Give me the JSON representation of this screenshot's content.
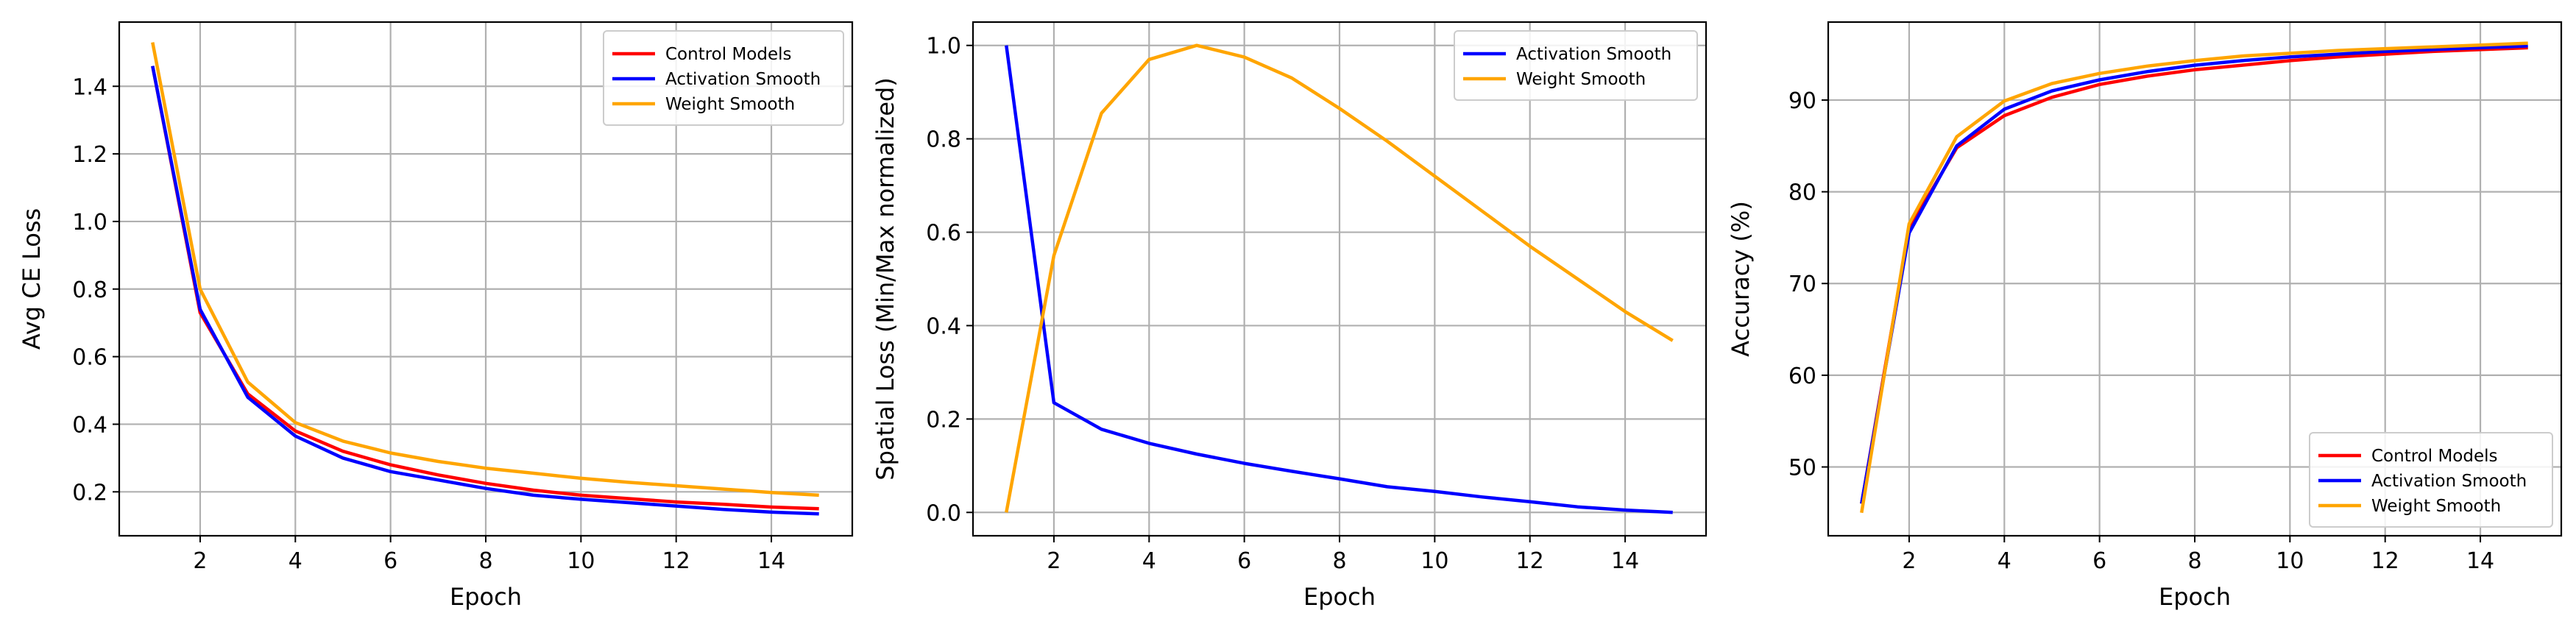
{
  "chart_data": [
    {
      "type": "line",
      "xlabel": "Epoch",
      "ylabel": "Avg CE Loss",
      "xlim": [
        0.3,
        15.7
      ],
      "ylim": [
        0.07,
        1.59
      ],
      "xticks": [
        2,
        4,
        6,
        8,
        10,
        12,
        14
      ],
      "yticks": [
        0.2,
        0.4,
        0.6,
        0.8,
        1.0,
        1.2,
        1.4
      ],
      "ytick_labels": [
        "0.2",
        "0.4",
        "0.6",
        "0.8",
        "1.0",
        "1.2",
        "1.4"
      ],
      "grid": true,
      "legend_position": "top-right",
      "x": [
        1,
        2,
        3,
        4,
        5,
        6,
        7,
        8,
        9,
        10,
        11,
        12,
        13,
        14,
        15
      ],
      "series": [
        {
          "name": "Control Models",
          "color": "#ff0000",
          "values": [
            1.46,
            0.73,
            0.49,
            0.38,
            0.32,
            0.28,
            0.25,
            0.225,
            0.205,
            0.19,
            0.18,
            0.17,
            0.163,
            0.155,
            0.15
          ]
        },
        {
          "name": "Activation Smooth",
          "color": "#0000ff",
          "values": [
            1.46,
            0.74,
            0.48,
            0.365,
            0.3,
            0.26,
            0.235,
            0.21,
            0.19,
            0.178,
            0.168,
            0.158,
            0.148,
            0.14,
            0.135
          ]
        },
        {
          "name": "Weight Smooth",
          "color": "#ffa500",
          "values": [
            1.53,
            0.8,
            0.525,
            0.405,
            0.35,
            0.315,
            0.29,
            0.27,
            0.255,
            0.24,
            0.228,
            0.218,
            0.208,
            0.198,
            0.19
          ]
        }
      ]
    },
    {
      "type": "line",
      "xlabel": "Epoch",
      "ylabel": "Spatial Loss (Min/Max normalized)",
      "xlim": [
        0.3,
        15.7
      ],
      "ylim": [
        -0.05,
        1.05
      ],
      "xticks": [
        2,
        4,
        6,
        8,
        10,
        12,
        14
      ],
      "yticks": [
        0.0,
        0.2,
        0.4,
        0.6,
        0.8,
        1.0
      ],
      "ytick_labels": [
        "0.0",
        "0.2",
        "0.4",
        "0.6",
        "0.8",
        "1.0"
      ],
      "grid": true,
      "legend_position": "top-right",
      "x": [
        1,
        2,
        3,
        4,
        5,
        6,
        7,
        8,
        9,
        10,
        11,
        12,
        13,
        14,
        15
      ],
      "series": [
        {
          "name": "Activation Smooth",
          "color": "#0000ff",
          "values": [
            1.0,
            0.235,
            0.178,
            0.148,
            0.125,
            0.105,
            0.088,
            0.072,
            0.055,
            0.045,
            0.033,
            0.023,
            0.012,
            0.005,
            0.0
          ]
        },
        {
          "name": "Weight Smooth",
          "color": "#ffa500",
          "values": [
            0.0,
            0.55,
            0.855,
            0.97,
            1.0,
            0.975,
            0.93,
            0.865,
            0.795,
            0.72,
            0.645,
            0.57,
            0.5,
            0.43,
            0.368
          ]
        }
      ]
    },
    {
      "type": "line",
      "xlabel": "Epoch",
      "ylabel": "Accuracy (%)",
      "xlim": [
        0.3,
        15.7
      ],
      "ylim": [
        42.5,
        98.5
      ],
      "xticks": [
        2,
        4,
        6,
        8,
        10,
        12,
        14
      ],
      "yticks": [
        50,
        60,
        70,
        80,
        90
      ],
      "ytick_labels": [
        "50",
        "60",
        "70",
        "80",
        "90"
      ],
      "grid": true,
      "legend_position": "bottom-right",
      "x": [
        1,
        2,
        3,
        4,
        5,
        6,
        7,
        8,
        9,
        10,
        11,
        12,
        13,
        14,
        15
      ],
      "series": [
        {
          "name": "Control Models",
          "color": "#ff0000",
          "values": [
            46.0,
            76.0,
            84.8,
            88.3,
            90.3,
            91.7,
            92.6,
            93.3,
            93.8,
            94.3,
            94.7,
            95.0,
            95.3,
            95.5,
            95.7
          ]
        },
        {
          "name": "Activation Smooth",
          "color": "#0000ff",
          "values": [
            46.0,
            75.5,
            85.0,
            89.0,
            91.0,
            92.2,
            93.1,
            93.8,
            94.3,
            94.7,
            95.0,
            95.3,
            95.5,
            95.7,
            95.9
          ]
        },
        {
          "name": "Weight Smooth",
          "color": "#ffa500",
          "values": [
            45.0,
            76.5,
            86.0,
            89.9,
            91.8,
            92.9,
            93.7,
            94.3,
            94.8,
            95.1,
            95.4,
            95.6,
            95.8,
            96.0,
            96.2
          ]
        }
      ]
    }
  ]
}
